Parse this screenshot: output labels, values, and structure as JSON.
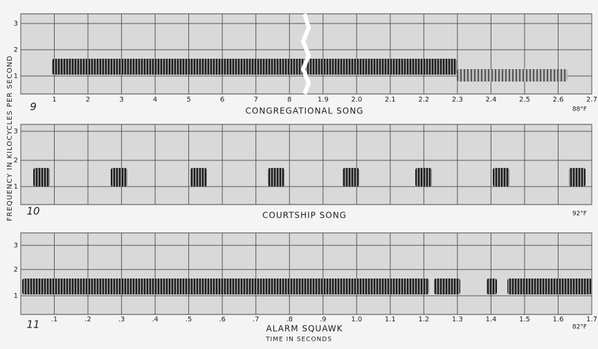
{
  "y_axis_label": "FREQUENCY IN KILOCYCLES PER SECOND",
  "x_axis_label": "TIME IN SECONDS",
  "panels": [
    {
      "number": "9",
      "title": "CONGREGATIONAL SONG",
      "temperature": "88°F",
      "yticks": [
        "3",
        "2",
        "1"
      ],
      "xticks": [
        "1",
        "2",
        "3",
        "4",
        "5",
        "6",
        "7",
        "8",
        "1.9",
        "2.0",
        "2.1",
        "2.2",
        "2.3",
        "2.4",
        "2.5",
        "2.6",
        "2.7"
      ]
    },
    {
      "number": "10",
      "title": "COURTSHIP SONG",
      "temperature": "92°F",
      "yticks": [
        "3",
        "2",
        "1"
      ],
      "xticks": []
    },
    {
      "number": "11",
      "title": "ALARM SQUAWK",
      "temperature": "82°F",
      "yticks": [
        "3",
        "2",
        "1"
      ],
      "xticks": [
        ".1",
        ".2",
        ".3",
        ".4",
        ".5",
        ".6",
        ".7",
        ".8",
        ".9",
        "1.0",
        "1.1",
        "1.2",
        "1.3",
        "1.4",
        "1.5",
        "1.6",
        "1.7"
      ]
    }
  ]
}
